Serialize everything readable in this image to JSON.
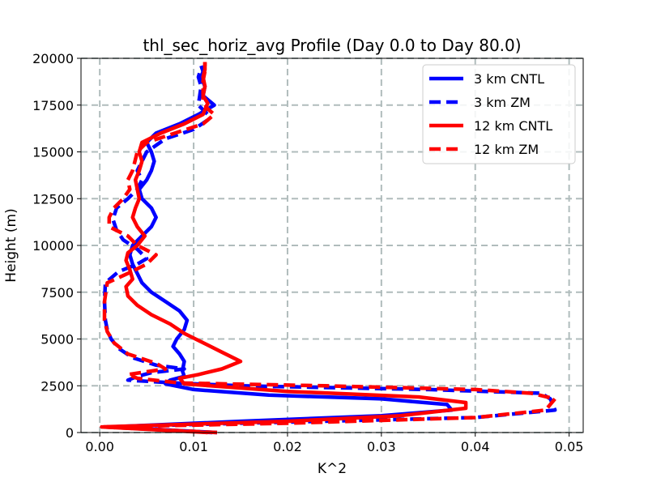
{
  "chart_data": {
    "type": "line",
    "title": "thl_sec_horiz_avg Profile (Day 0.0 to Day 80.0)",
    "xlabel": "K^2",
    "ylabel": "Height (m)",
    "xlim": [
      -0.002,
      0.0515
    ],
    "ylim": [
      0,
      20000
    ],
    "xticks": [
      0.0,
      0.01,
      0.02,
      0.03,
      0.04,
      0.05
    ],
    "xtick_labels": [
      "0.00",
      "0.01",
      "0.02",
      "0.03",
      "0.04",
      "0.05"
    ],
    "yticks": [
      0,
      2500,
      5000,
      7500,
      10000,
      12500,
      15000,
      17500,
      20000
    ],
    "ytick_labels": [
      "0",
      "2500",
      "5000",
      "7500",
      "10000",
      "12500",
      "15000",
      "17500",
      "20000"
    ],
    "grid": true,
    "legend_position": "top-right",
    "series": [
      {
        "name": "3 km CNTL",
        "color": "#0000ff",
        "style": "solid",
        "points": [
          [
            0.0125,
            0
          ],
          [
            0.001,
            300
          ],
          [
            0.015,
            600
          ],
          [
            0.03,
            900
          ],
          [
            0.0375,
            1200
          ],
          [
            0.037,
            1500
          ],
          [
            0.03,
            1800
          ],
          [
            0.018,
            2000
          ],
          [
            0.01,
            2300
          ],
          [
            0.007,
            2600
          ],
          [
            0.0075,
            2800
          ],
          [
            0.009,
            3000
          ],
          [
            0.0088,
            3300
          ],
          [
            0.009,
            3800
          ],
          [
            0.0085,
            4200
          ],
          [
            0.0078,
            4600
          ],
          [
            0.0082,
            5000
          ],
          [
            0.009,
            5500
          ],
          [
            0.0093,
            6000
          ],
          [
            0.0085,
            6500
          ],
          [
            0.007,
            7000
          ],
          [
            0.0055,
            7500
          ],
          [
            0.0045,
            8000
          ],
          [
            0.004,
            8500
          ],
          [
            0.0035,
            9000
          ],
          [
            0.0032,
            9500
          ],
          [
            0.0035,
            10000
          ],
          [
            0.0045,
            10500
          ],
          [
            0.0055,
            11000
          ],
          [
            0.006,
            11500
          ],
          [
            0.0055,
            12000
          ],
          [
            0.0045,
            12500
          ],
          [
            0.0042,
            13000
          ],
          [
            0.005,
            13500
          ],
          [
            0.0055,
            14000
          ],
          [
            0.0058,
            14500
          ],
          [
            0.0055,
            15000
          ],
          [
            0.005,
            15500
          ],
          [
            0.006,
            16000
          ],
          [
            0.0085,
            16500
          ],
          [
            0.0105,
            17000
          ],
          [
            0.0122,
            17500
          ],
          [
            0.011,
            18000
          ],
          [
            0.0112,
            18500
          ],
          [
            0.0108,
            19000
          ],
          [
            0.011,
            19300
          ],
          [
            0.0108,
            19600
          ]
        ]
      },
      {
        "name": "3 km ZM",
        "color": "#0000ff",
        "style": "dashed",
        "points": [
          [
            0.012,
            0
          ],
          [
            0.0008,
            300
          ],
          [
            0.015,
            500
          ],
          [
            0.04,
            800
          ],
          [
            0.0485,
            1200
          ],
          [
            0.048,
            1800
          ],
          [
            0.047,
            2100
          ],
          [
            0.035,
            2300
          ],
          [
            0.015,
            2500
          ],
          [
            0.008,
            2650
          ],
          [
            0.003,
            2800
          ],
          [
            0.004,
            3000
          ],
          [
            0.0055,
            3200
          ],
          [
            0.009,
            3400
          ],
          [
            0.006,
            3600
          ],
          [
            0.0035,
            4000
          ],
          [
            0.002,
            4500
          ],
          [
            0.0012,
            5000
          ],
          [
            0.0008,
            5500
          ],
          [
            0.0006,
            6000
          ],
          [
            0.0005,
            7000
          ],
          [
            0.0006,
            8000
          ],
          [
            0.002,
            8600
          ],
          [
            0.004,
            9000
          ],
          [
            0.005,
            9300
          ],
          [
            0.004,
            9800
          ],
          [
            0.0025,
            10300
          ],
          [
            0.0018,
            10800
          ],
          [
            0.0014,
            11400
          ],
          [
            0.0018,
            12000
          ],
          [
            0.003,
            12500
          ],
          [
            0.004,
            13000
          ],
          [
            0.0045,
            13500
          ],
          [
            0.004,
            14000
          ],
          [
            0.005,
            15000
          ],
          [
            0.007,
            15700
          ],
          [
            0.01,
            16200
          ],
          [
            0.0115,
            16700
          ],
          [
            0.0115,
            17000
          ],
          [
            0.0105,
            17500
          ],
          [
            0.0108,
            18500
          ],
          [
            0.0105,
            19000
          ],
          [
            0.0108,
            19500
          ]
        ]
      },
      {
        "name": "12 km CNTL",
        "color": "#ff0000",
        "style": "solid",
        "points": [
          [
            0.0115,
            0
          ],
          [
            0.0002,
            300
          ],
          [
            0.02,
            600
          ],
          [
            0.032,
            900
          ],
          [
            0.039,
            1300
          ],
          [
            0.039,
            1600
          ],
          [
            0.034,
            1900
          ],
          [
            0.02,
            2200
          ],
          [
            0.009,
            2600
          ],
          [
            0.0085,
            2900
          ],
          [
            0.0105,
            3100
          ],
          [
            0.013,
            3400
          ],
          [
            0.015,
            3800
          ],
          [
            0.013,
            4300
          ],
          [
            0.011,
            4800
          ],
          [
            0.009,
            5300
          ],
          [
            0.0075,
            5800
          ],
          [
            0.0055,
            6300
          ],
          [
            0.004,
            6800
          ],
          [
            0.003,
            7300
          ],
          [
            0.0028,
            7800
          ],
          [
            0.0035,
            8200
          ],
          [
            0.0032,
            8700
          ],
          [
            0.0028,
            9200
          ],
          [
            0.003,
            9600
          ],
          [
            0.004,
            10000
          ],
          [
            0.0048,
            10500
          ],
          [
            0.004,
            11000
          ],
          [
            0.0035,
            11500
          ],
          [
            0.0038,
            12000
          ],
          [
            0.0042,
            12500
          ],
          [
            0.004,
            13000
          ],
          [
            0.0038,
            13500
          ],
          [
            0.0042,
            14000
          ],
          [
            0.0045,
            14500
          ],
          [
            0.0042,
            15000
          ],
          [
            0.0045,
            15500
          ],
          [
            0.0065,
            16000
          ],
          [
            0.009,
            16500
          ],
          [
            0.011,
            17000
          ],
          [
            0.0115,
            17600
          ],
          [
            0.011,
            18000
          ],
          [
            0.0112,
            18500
          ],
          [
            0.011,
            19000
          ],
          [
            0.0112,
            19400
          ],
          [
            0.0112,
            19800
          ]
        ]
      },
      {
        "name": "12 km ZM",
        "color": "#ff0000",
        "style": "dashed",
        "points": [
          [
            0.0125,
            0
          ],
          [
            0.0003,
            300
          ],
          [
            0.02,
            500
          ],
          [
            0.04,
            800
          ],
          [
            0.0475,
            1200
          ],
          [
            0.0485,
            1800
          ],
          [
            0.046,
            2100
          ],
          [
            0.04,
            2300
          ],
          [
            0.024,
            2500
          ],
          [
            0.0085,
            2650
          ],
          [
            0.004,
            2900
          ],
          [
            0.003,
            3100
          ],
          [
            0.007,
            3400
          ],
          [
            0.006,
            3700
          ],
          [
            0.003,
            4200
          ],
          [
            0.0015,
            4800
          ],
          [
            0.0008,
            5400
          ],
          [
            0.0005,
            6000
          ],
          [
            0.0005,
            7000
          ],
          [
            0.0008,
            8000
          ],
          [
            0.003,
            8500
          ],
          [
            0.005,
            9000
          ],
          [
            0.006,
            9500
          ],
          [
            0.004,
            10000
          ],
          [
            0.003,
            10500
          ],
          [
            0.001,
            11000
          ],
          [
            0.001,
            11500
          ],
          [
            0.0015,
            12000
          ],
          [
            0.0025,
            12500
          ],
          [
            0.0032,
            13000
          ],
          [
            0.003,
            13500
          ],
          [
            0.0035,
            14000
          ],
          [
            0.004,
            15000
          ],
          [
            0.005,
            15500
          ],
          [
            0.008,
            16000
          ],
          [
            0.011,
            16500
          ],
          [
            0.0122,
            17000
          ],
          [
            0.0115,
            17300
          ],
          [
            0.011,
            17700
          ],
          [
            0.011,
            18200
          ],
          [
            0.011,
            18800
          ],
          [
            0.0112,
            19300
          ],
          [
            0.0112,
            19800
          ]
        ]
      }
    ]
  }
}
